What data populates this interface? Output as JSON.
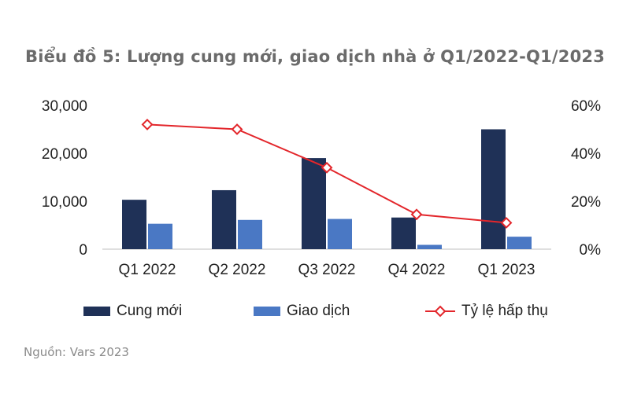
{
  "chart_data": {
    "type": "bar",
    "title": "Biểu đồ 5: Lượng cung mới, giao dịch nhà ở Q1/2022-Q1/2023",
    "categories": [
      "Q1 2022",
      "Q2 2022",
      "Q3 2022",
      "Q4 2022",
      "Q1 2023"
    ],
    "series": [
      {
        "name": "Cung mới",
        "type": "bar",
        "axis": "left",
        "color": "#1f3157",
        "values": [
          10300,
          12300,
          19000,
          6600,
          25000
        ]
      },
      {
        "name": "Giao dịch",
        "type": "bar",
        "axis": "left",
        "color": "#4a78c4",
        "values": [
          5300,
          6100,
          6300,
          900,
          2600
        ]
      },
      {
        "name": "Tỷ lệ hấp thụ",
        "type": "line",
        "axis": "right",
        "color": "#e3262b",
        "marker": "diamond",
        "values": [
          52,
          50,
          34,
          14.5,
          11
        ]
      }
    ],
    "y_left": {
      "ylim": [
        0,
        30000
      ],
      "ticks": [
        "0",
        "10,000",
        "20,000",
        "30,000"
      ]
    },
    "y_right": {
      "ylim": [
        0,
        60
      ],
      "ticks": [
        "0%",
        "20%",
        "40%",
        "60%"
      ]
    },
    "grid": false,
    "legend": "bottom"
  },
  "source": "Nguồn: Vars 2023"
}
